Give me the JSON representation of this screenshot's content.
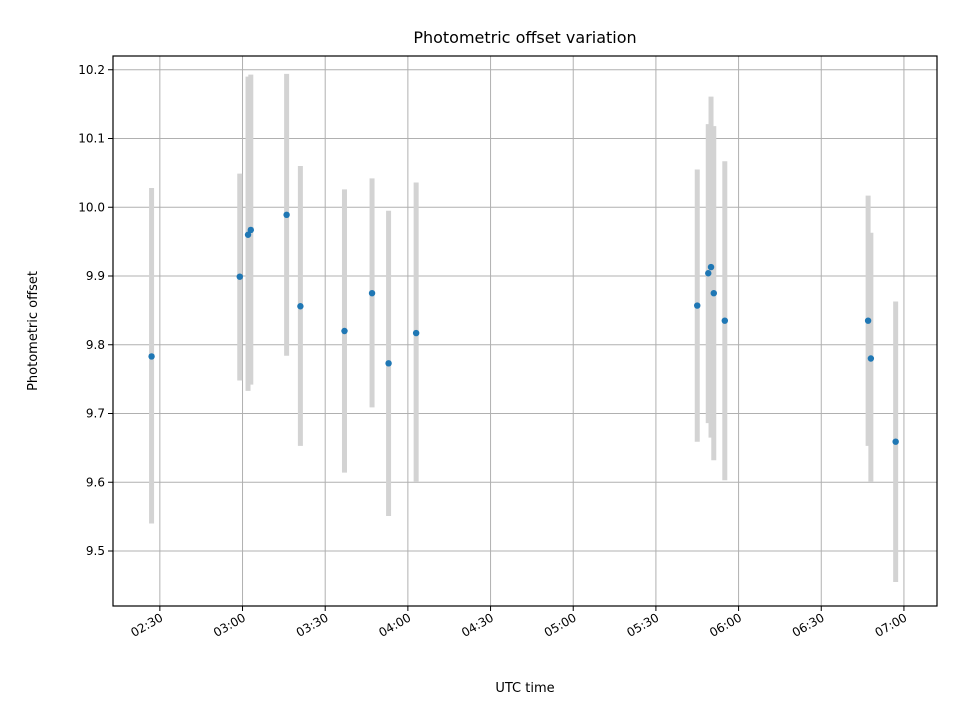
{
  "chart_data": {
    "type": "scatter",
    "title": "Photometric offset variation",
    "xlabel": "UTC time",
    "ylabel": "Photometric offset",
    "xlim": [
      "02:13",
      "07:12"
    ],
    "ylim": [
      9.42,
      10.22
    ],
    "xticks": [
      "02:30",
      "03:00",
      "03:30",
      "04:00",
      "04:30",
      "05:00",
      "05:30",
      "06:00",
      "06:30",
      "07:00"
    ],
    "yticks": [
      "9.5",
      "9.6",
      "9.7",
      "9.8",
      "9.9",
      "10.0",
      "10.1",
      "10.2"
    ],
    "grid": true,
    "point_color": "#1f77b4",
    "errorbar_color": "#d3d3d3",
    "points": [
      {
        "x": "02:27",
        "y": 9.783,
        "ylow": 9.54,
        "yhigh": 10.028
      },
      {
        "x": "02:59",
        "y": 9.899,
        "ylow": 9.748,
        "yhigh": 10.049
      },
      {
        "x": "03:02",
        "y": 9.96,
        "ylow": 9.733,
        "yhigh": 10.19
      },
      {
        "x": "03:03",
        "y": 9.967,
        "ylow": 9.742,
        "yhigh": 10.193
      },
      {
        "x": "03:16",
        "y": 9.989,
        "ylow": 9.784,
        "yhigh": 10.194
      },
      {
        "x": "03:21",
        "y": 9.856,
        "ylow": 9.653,
        "yhigh": 10.06
      },
      {
        "x": "03:37",
        "y": 9.82,
        "ylow": 9.614,
        "yhigh": 10.026
      },
      {
        "x": "03:47",
        "y": 9.875,
        "ylow": 9.709,
        "yhigh": 10.042
      },
      {
        "x": "03:53",
        "y": 9.773,
        "ylow": 9.551,
        "yhigh": 9.995
      },
      {
        "x": "04:03",
        "y": 9.817,
        "ylow": 9.601,
        "yhigh": 10.036
      },
      {
        "x": "05:45",
        "y": 9.857,
        "ylow": 9.659,
        "yhigh": 10.055
      },
      {
        "x": "05:49",
        "y": 9.904,
        "ylow": 9.686,
        "yhigh": 10.121
      },
      {
        "x": "05:50",
        "y": 9.913,
        "ylow": 9.665,
        "yhigh": 10.161
      },
      {
        "x": "05:51",
        "y": 9.875,
        "ylow": 9.632,
        "yhigh": 10.118
      },
      {
        "x": "05:55",
        "y": 9.835,
        "ylow": 9.603,
        "yhigh": 10.067
      },
      {
        "x": "06:47",
        "y": 9.835,
        "ylow": 9.653,
        "yhigh": 10.017
      },
      {
        "x": "06:48",
        "y": 9.78,
        "ylow": 9.601,
        "yhigh": 9.963
      },
      {
        "x": "06:57",
        "y": 9.659,
        "ylow": 9.455,
        "yhigh": 9.863
      }
    ]
  }
}
